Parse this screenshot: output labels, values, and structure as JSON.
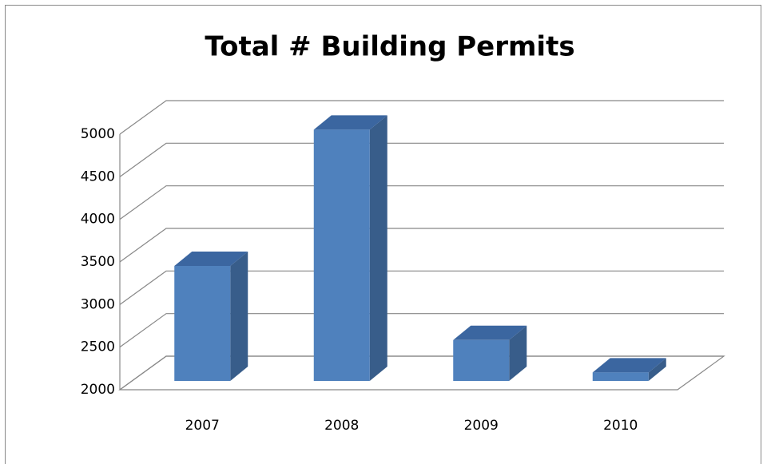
{
  "chart_data": {
    "type": "bar3d",
    "title": "Total # Building Permits",
    "categories": [
      "2007",
      "2008",
      "2009",
      "2010"
    ],
    "values": [
      3350,
      4950,
      2480,
      2100
    ],
    "color": "#4f81bd",
    "ylim": [
      2000,
      5000
    ],
    "yticks": [
      2000,
      2500,
      3000,
      3500,
      4000,
      4500,
      5000
    ],
    "grid": true
  }
}
